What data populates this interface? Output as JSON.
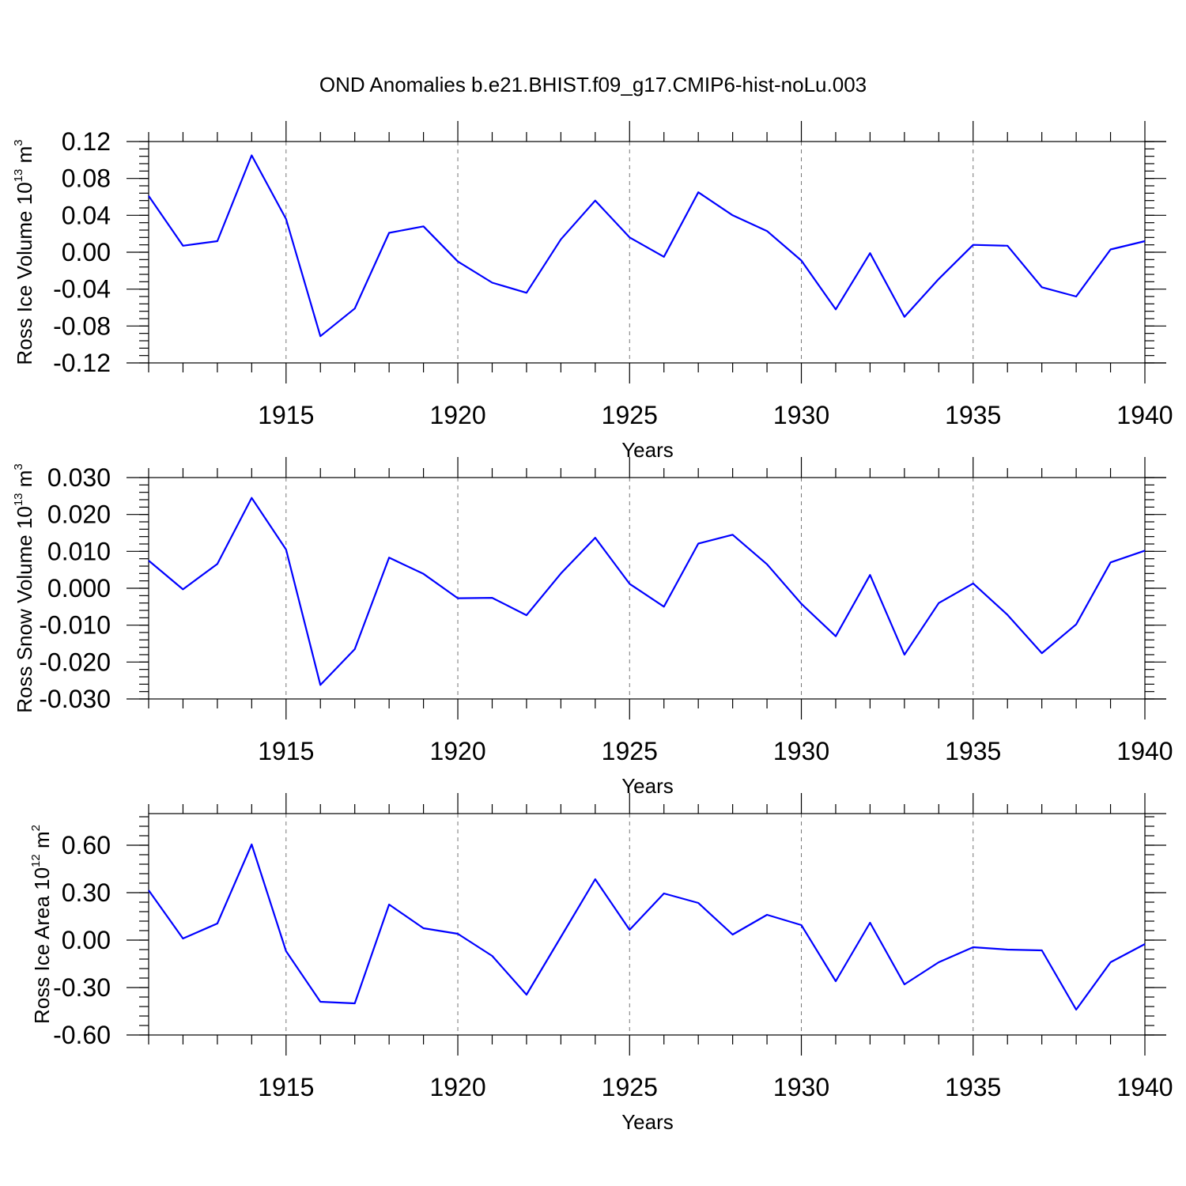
{
  "title": "OND Anomalies b.e21.BHIST.f09_g17.CMIP6-hist-noLu.003",
  "chart_data": [
    {
      "type": "line",
      "ylabel_main": "Ross Ice Volume 10",
      "ylabel_exp": "13",
      "ylabel_unit": " m",
      "ylabel_unit_exp": "3",
      "xlabel": "Years",
      "xlim": [
        1911,
        1940
      ],
      "ylim": [
        -0.12,
        0.12
      ],
      "yticks": [
        -0.12,
        -0.08,
        -0.04,
        0.0,
        0.04,
        0.08,
        0.12
      ],
      "ytick_labels": [
        "-0.12",
        "-0.08",
        "-0.04",
        "0.00",
        "0.04",
        "0.08",
        "0.12"
      ],
      "xticks": [
        1915,
        1920,
        1925,
        1930,
        1935,
        1940
      ],
      "xtick_labels": [
        "1915",
        "1920",
        "1925",
        "1930",
        "1935",
        "1940"
      ],
      "color": "#0000ff",
      "x": [
        1911,
        1912,
        1913,
        1914,
        1915,
        1916,
        1917,
        1918,
        1919,
        1920,
        1921,
        1922,
        1923,
        1924,
        1925,
        1926,
        1927,
        1928,
        1929,
        1930,
        1931,
        1932,
        1933,
        1934,
        1935,
        1936,
        1937,
        1938,
        1939,
        1940
      ],
      "values": [
        0.061,
        0.007,
        0.012,
        0.105,
        0.036,
        -0.091,
        -0.061,
        0.021,
        0.028,
        -0.01,
        -0.033,
        -0.044,
        0.014,
        0.056,
        0.016,
        -0.005,
        0.065,
        0.04,
        0.023,
        -0.009,
        -0.062,
        -0.001,
        -0.07,
        -0.029,
        0.008,
        0.007,
        -0.038,
        -0.048,
        0.003,
        0.012
      ]
    },
    {
      "type": "line",
      "ylabel_main": "Ross Snow Volume 10",
      "ylabel_exp": "13",
      "ylabel_unit": " m",
      "ylabel_unit_exp": "3",
      "xlabel": "Years",
      "xlim": [
        1911,
        1940
      ],
      "ylim": [
        -0.03,
        0.03
      ],
      "yticks": [
        -0.03,
        -0.02,
        -0.01,
        0.0,
        0.01,
        0.02,
        0.03
      ],
      "ytick_labels": [
        "-0.030",
        "-0.020",
        "-0.010",
        "0.000",
        "0.010",
        "0.020",
        "0.030"
      ],
      "xticks": [
        1915,
        1920,
        1925,
        1930,
        1935,
        1940
      ],
      "xtick_labels": [
        "1915",
        "1920",
        "1925",
        "1930",
        "1935",
        "1940"
      ],
      "color": "#0000ff",
      "x": [
        1911,
        1912,
        1913,
        1914,
        1915,
        1916,
        1917,
        1918,
        1919,
        1920,
        1921,
        1922,
        1923,
        1924,
        1925,
        1926,
        1927,
        1928,
        1929,
        1930,
        1931,
        1932,
        1933,
        1934,
        1935,
        1936,
        1937,
        1938,
        1939,
        1940
      ],
      "values": [
        0.0075,
        -0.0003,
        0.0066,
        0.0245,
        0.0105,
        -0.0262,
        -0.0165,
        0.0083,
        0.0039,
        -0.0027,
        -0.0026,
        -0.0073,
        0.004,
        0.0137,
        0.0012,
        -0.005,
        0.0121,
        0.0145,
        0.0065,
        -0.0042,
        -0.013,
        0.0036,
        -0.018,
        -0.004,
        0.0013,
        -0.0072,
        -0.0176,
        -0.0098,
        0.007,
        0.0102
      ]
    },
    {
      "type": "line",
      "ylabel_main": "Ross Ice Area 10",
      "ylabel_exp": "12",
      "ylabel_unit": " m",
      "ylabel_unit_exp": "2",
      "xlabel": "Years",
      "xlim": [
        1911,
        1940
      ],
      "ylim": [
        -0.6,
        0.8
      ],
      "yticks": [
        -0.6,
        -0.3,
        0.0,
        0.3,
        0.6
      ],
      "ytick_labels": [
        "-0.60",
        "-0.30",
        "0.00",
        "0.30",
        "0.60"
      ],
      "xticks": [
        1915,
        1920,
        1925,
        1930,
        1935,
        1940
      ],
      "xtick_labels": [
        "1915",
        "1920",
        "1925",
        "1930",
        "1935",
        "1940"
      ],
      "color": "#0000ff",
      "x": [
        1911,
        1912,
        1913,
        1914,
        1915,
        1916,
        1917,
        1918,
        1919,
        1920,
        1921,
        1922,
        1923,
        1924,
        1925,
        1926,
        1927,
        1928,
        1929,
        1930,
        1931,
        1932,
        1933,
        1934,
        1935,
        1936,
        1937,
        1938,
        1939,
        1940
      ],
      "values": [
        0.315,
        0.01,
        0.105,
        0.605,
        -0.07,
        -0.39,
        -0.4,
        0.225,
        0.075,
        0.04,
        -0.1,
        -0.345,
        0.02,
        0.385,
        0.065,
        0.295,
        0.235,
        0.035,
        0.16,
        0.095,
        -0.26,
        0.11,
        -0.28,
        -0.14,
        -0.045,
        -0.06,
        -0.065,
        -0.44,
        -0.14,
        -0.025
      ]
    }
  ]
}
